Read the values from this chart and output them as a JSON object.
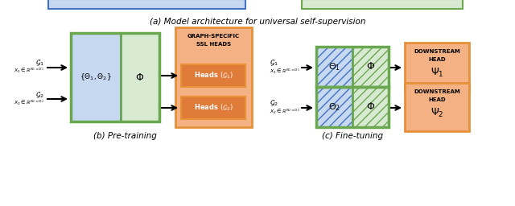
{
  "fig_width": 6.4,
  "fig_height": 2.56,
  "dpi": 100,
  "bg_color": "#ffffff",
  "title_a": "(a) Model architecture for universal self-supervision",
  "title_b": "(b) Pre-training",
  "title_c": "(c) Fine-tuning",
  "colors": {
    "blue_fill": "#c6d9f1",
    "blue_border": "#4472c4",
    "green_fill": "#d9ead3",
    "green_border": "#6aa84f",
    "orange_fill": "#f4b183",
    "orange_border": "#e69138",
    "orange_dark": "#e07b39",
    "orange_box_fill": "#f4b183",
    "hatching_blue": "#4472c4",
    "hatching_green": "#6aa84f"
  }
}
